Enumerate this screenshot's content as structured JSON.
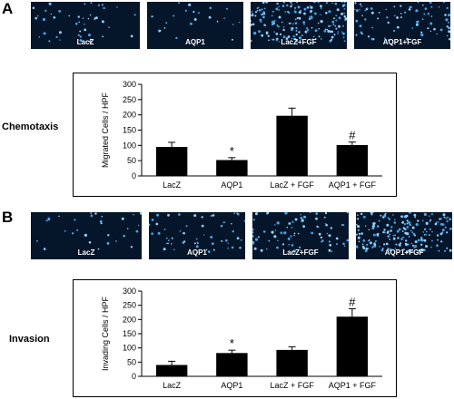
{
  "panels": [
    {
      "letter": "A",
      "side_label": "Chemotaxis",
      "images": [
        {
          "label": "LacZ",
          "density": 45
        },
        {
          "label": "AQP1",
          "density": 22
        },
        {
          "label": "LacZ+FGF",
          "density": 180
        },
        {
          "label": "AQP1+FGF",
          "density": 80
        }
      ]
    },
    {
      "letter": "B",
      "side_label": "Invasion",
      "images": [
        {
          "label": "LacZ",
          "density": 30
        },
        {
          "label": "AQP1",
          "density": 55
        },
        {
          "label": "LacZ+FGF",
          "density": 80
        },
        {
          "label": "AQP1+FGF",
          "density": 200
        }
      ]
    }
  ],
  "chart_data": [
    {
      "type": "bar",
      "categories": [
        "LacZ",
        "AQP1",
        "LacZ + FGF",
        "AQP1 + FGF"
      ],
      "values": [
        95,
        52,
        197,
        101
      ],
      "errors": [
        15,
        8,
        25,
        10
      ],
      "annotations": [
        "",
        "*",
        "",
        "#"
      ],
      "ylabel": "Migrated Cells / HPF",
      "ylim": [
        0,
        300
      ],
      "yticks": [
        0,
        50,
        100,
        150,
        200,
        250,
        300
      ],
      "bar_color": "#000000"
    },
    {
      "type": "bar",
      "categories": [
        "LacZ",
        "AQP1",
        "LacZ + FGF",
        "AQP1 + FGF"
      ],
      "values": [
        40,
        82,
        93,
        210
      ],
      "errors": [
        13,
        10,
        11,
        28
      ],
      "annotations": [
        "",
        "*",
        "",
        "#"
      ],
      "ylabel": "Invading Cells / HPF",
      "ylim": [
        0,
        300
      ],
      "yticks": [
        0,
        50,
        100,
        150,
        200,
        250,
        300
      ],
      "bar_color": "#000000"
    }
  ]
}
